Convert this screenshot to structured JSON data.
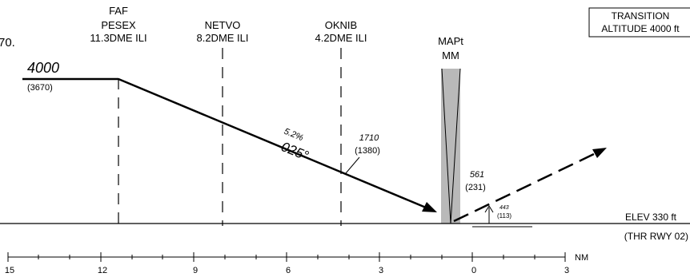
{
  "colors": {
    "ink": "#000000",
    "mapt_zone": "#b9b9b9",
    "background": "#ffffff"
  },
  "left_edge_text": "70.",
  "transition_box": {
    "line1": "TRANSITION",
    "line2": "ALTITUDE 4000 ft"
  },
  "fixes": [
    {
      "id": "faf",
      "line0": "FAF",
      "line1": "PESEX",
      "line2": "11.3DME ILI",
      "nm": 11.3
    },
    {
      "id": "netvo",
      "line1": "NETVO",
      "line2": "8.2DME ILI",
      "nm": 8.2
    },
    {
      "id": "oknib",
      "line1": "OKNIB",
      "line2": "4.2DME ILI",
      "nm": 4.2
    }
  ],
  "mapt": {
    "line1": "MAPt",
    "line2": "MM"
  },
  "altitude_initial": {
    "value": "4000",
    "height": "(3670)"
  },
  "descent": {
    "gradient": "5.2%",
    "course": "025°"
  },
  "check_altitude": {
    "value": "1710",
    "height": "(1380)"
  },
  "missed_approach_altitude": {
    "value": "561",
    "height": "(231)"
  },
  "obstacle": {
    "value": "443",
    "height": "(113)"
  },
  "elevation": {
    "elev": "ELEV 330 ft",
    "thr": "(THR RWY 02)"
  },
  "distance_scale": {
    "unit": "NM",
    "ticks": [
      "15",
      "12",
      "9",
      "6",
      "3",
      "0",
      "3"
    ]
  }
}
